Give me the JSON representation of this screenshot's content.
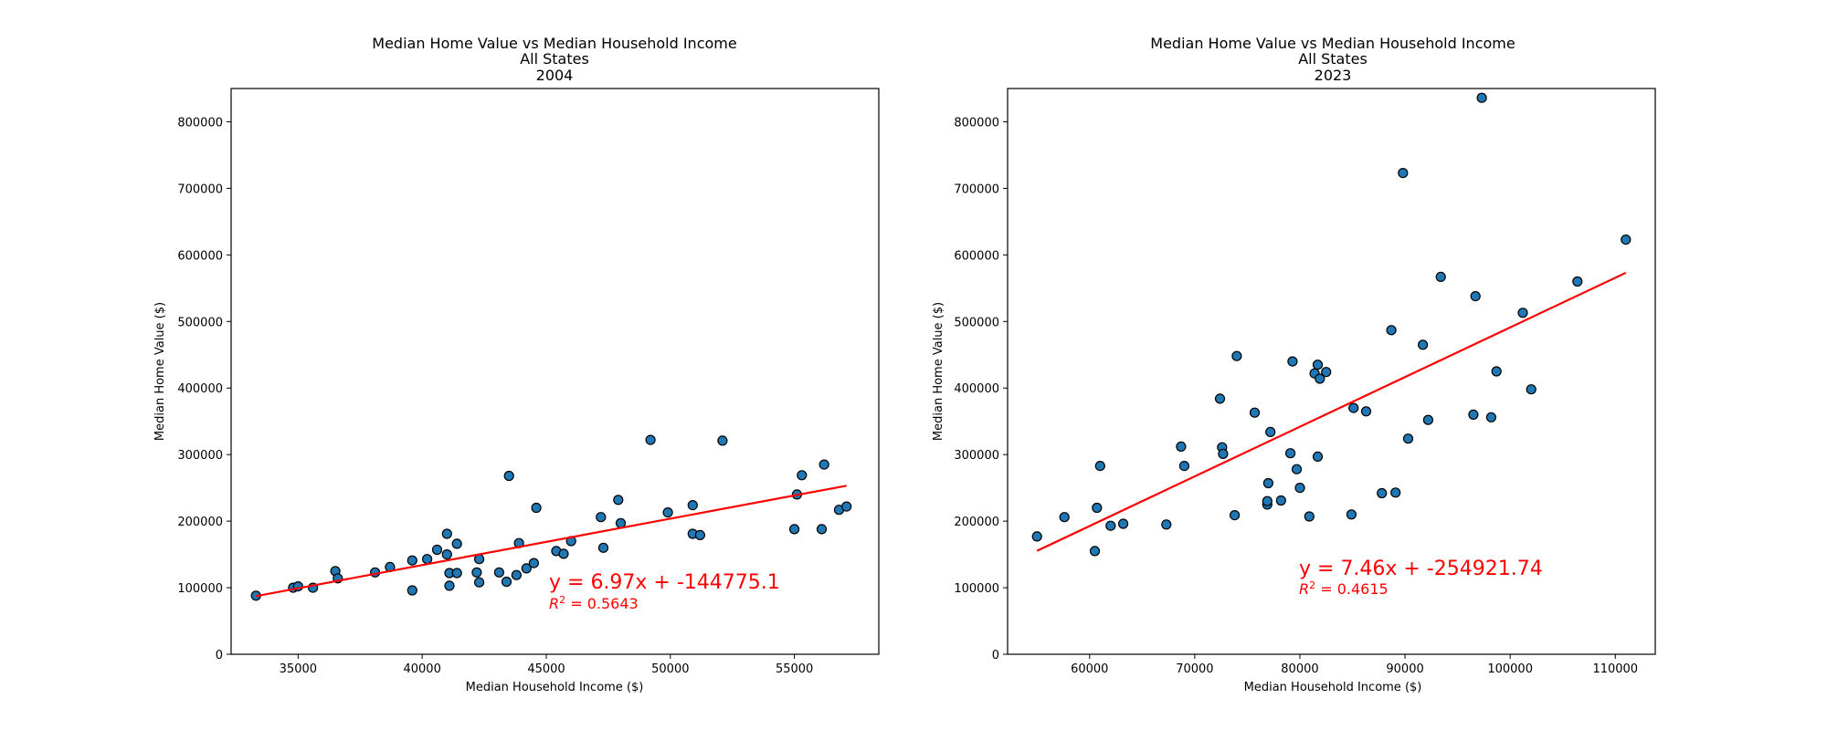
{
  "colors": {
    "point_fill": "#1f77b4",
    "point_edge": "#000000",
    "fit_line": "#ff0000"
  },
  "chart_data": [
    {
      "type": "scatter",
      "title": [
        "Median Home Value vs Median Household Income",
        "All States",
        "2004"
      ],
      "xlabel": "Median Household Income ($)",
      "ylabel": "Median Home Value ($)",
      "xlim": [
        32300,
        58400
      ],
      "ylim": [
        0,
        850000
      ],
      "xticks": [
        35000,
        40000,
        45000,
        50000,
        55000
      ],
      "yticks": [
        0,
        100000,
        200000,
        300000,
        400000,
        500000,
        600000,
        700000,
        800000
      ],
      "grid": false,
      "x": [
        33300,
        34800,
        35000,
        35600,
        36500,
        36600,
        38100,
        38700,
        39600,
        39600,
        40200,
        40600,
        41000,
        41000,
        41100,
        41100,
        41400,
        41400,
        42200,
        42300,
        42300,
        43100,
        43400,
        43500,
        43800,
        43900,
        44200,
        44500,
        44600,
        45400,
        45700,
        46000,
        47200,
        47300,
        47900,
        48000,
        49200,
        49900,
        50900,
        50900,
        51200,
        52100,
        55000,
        55100,
        55300,
        56100,
        56200,
        56800,
        57100
      ],
      "y": [
        88000,
        100000,
        102000,
        100000,
        125000,
        114000,
        123000,
        131000,
        141000,
        96000,
        143000,
        157000,
        150000,
        181000,
        103000,
        122000,
        166000,
        122000,
        123000,
        143000,
        108000,
        123000,
        109000,
        268000,
        119000,
        167000,
        129000,
        137000,
        220000,
        155000,
        151000,
        170000,
        206000,
        160000,
        232000,
        197000,
        322000,
        213000,
        224000,
        181000,
        179000,
        321000,
        188000,
        240000,
        269000,
        188000,
        285000,
        217000,
        222000
      ],
      "fit": {
        "slope": 6.97,
        "intercept": -144775.1,
        "x_range": [
          33300,
          57100
        ]
      },
      "annotations": {
        "equation": "y = 6.97x + -144775.1",
        "r2_value": " = 0.5643"
      }
    },
    {
      "type": "scatter",
      "title": [
        "Median Home Value vs Median Household Income",
        "All States",
        "2023"
      ],
      "xlabel": "Median Household Income ($)",
      "ylabel": "Median Home Value ($)",
      "xlim": [
        52200,
        113800
      ],
      "ylim": [
        0,
        850000
      ],
      "xticks": [
        60000,
        70000,
        80000,
        90000,
        100000,
        110000
      ],
      "yticks": [
        0,
        100000,
        200000,
        300000,
        400000,
        500000,
        600000,
        700000,
        800000
      ],
      "grid": false,
      "x": [
        55000,
        57600,
        60500,
        60700,
        61000,
        62000,
        63200,
        67300,
        68700,
        69000,
        72400,
        72600,
        72700,
        73800,
        74000,
        75700,
        76900,
        76900,
        77000,
        77200,
        78200,
        79100,
        79300,
        79700,
        80000,
        80900,
        81400,
        81700,
        81700,
        81900,
        82500,
        84900,
        85100,
        86300,
        87800,
        88700,
        89100,
        89800,
        90300,
        91700,
        92200,
        93400,
        96500,
        96700,
        97300,
        98200,
        98700,
        101200,
        102000,
        106400,
        111000
      ],
      "y": [
        177000,
        206000,
        155000,
        220000,
        283000,
        193000,
        196000,
        195000,
        312000,
        283000,
        384000,
        311000,
        301000,
        209000,
        448000,
        363000,
        225000,
        230000,
        257000,
        334000,
        231000,
        302000,
        440000,
        278000,
        250000,
        207000,
        422000,
        435000,
        297000,
        414000,
        424000,
        210000,
        370000,
        365000,
        242000,
        487000,
        243000,
        723000,
        324000,
        465000,
        352000,
        567000,
        360000,
        538000,
        836000,
        356000,
        425000,
        513000,
        398000,
        560000,
        623000
      ],
      "fit": {
        "slope": 7.46,
        "intercept": -254921.74,
        "x_range": [
          55000,
          111000
        ]
      },
      "annotations": {
        "equation": "y = 7.46x + -254921.74",
        "r2_value": " = 0.4615"
      }
    }
  ]
}
